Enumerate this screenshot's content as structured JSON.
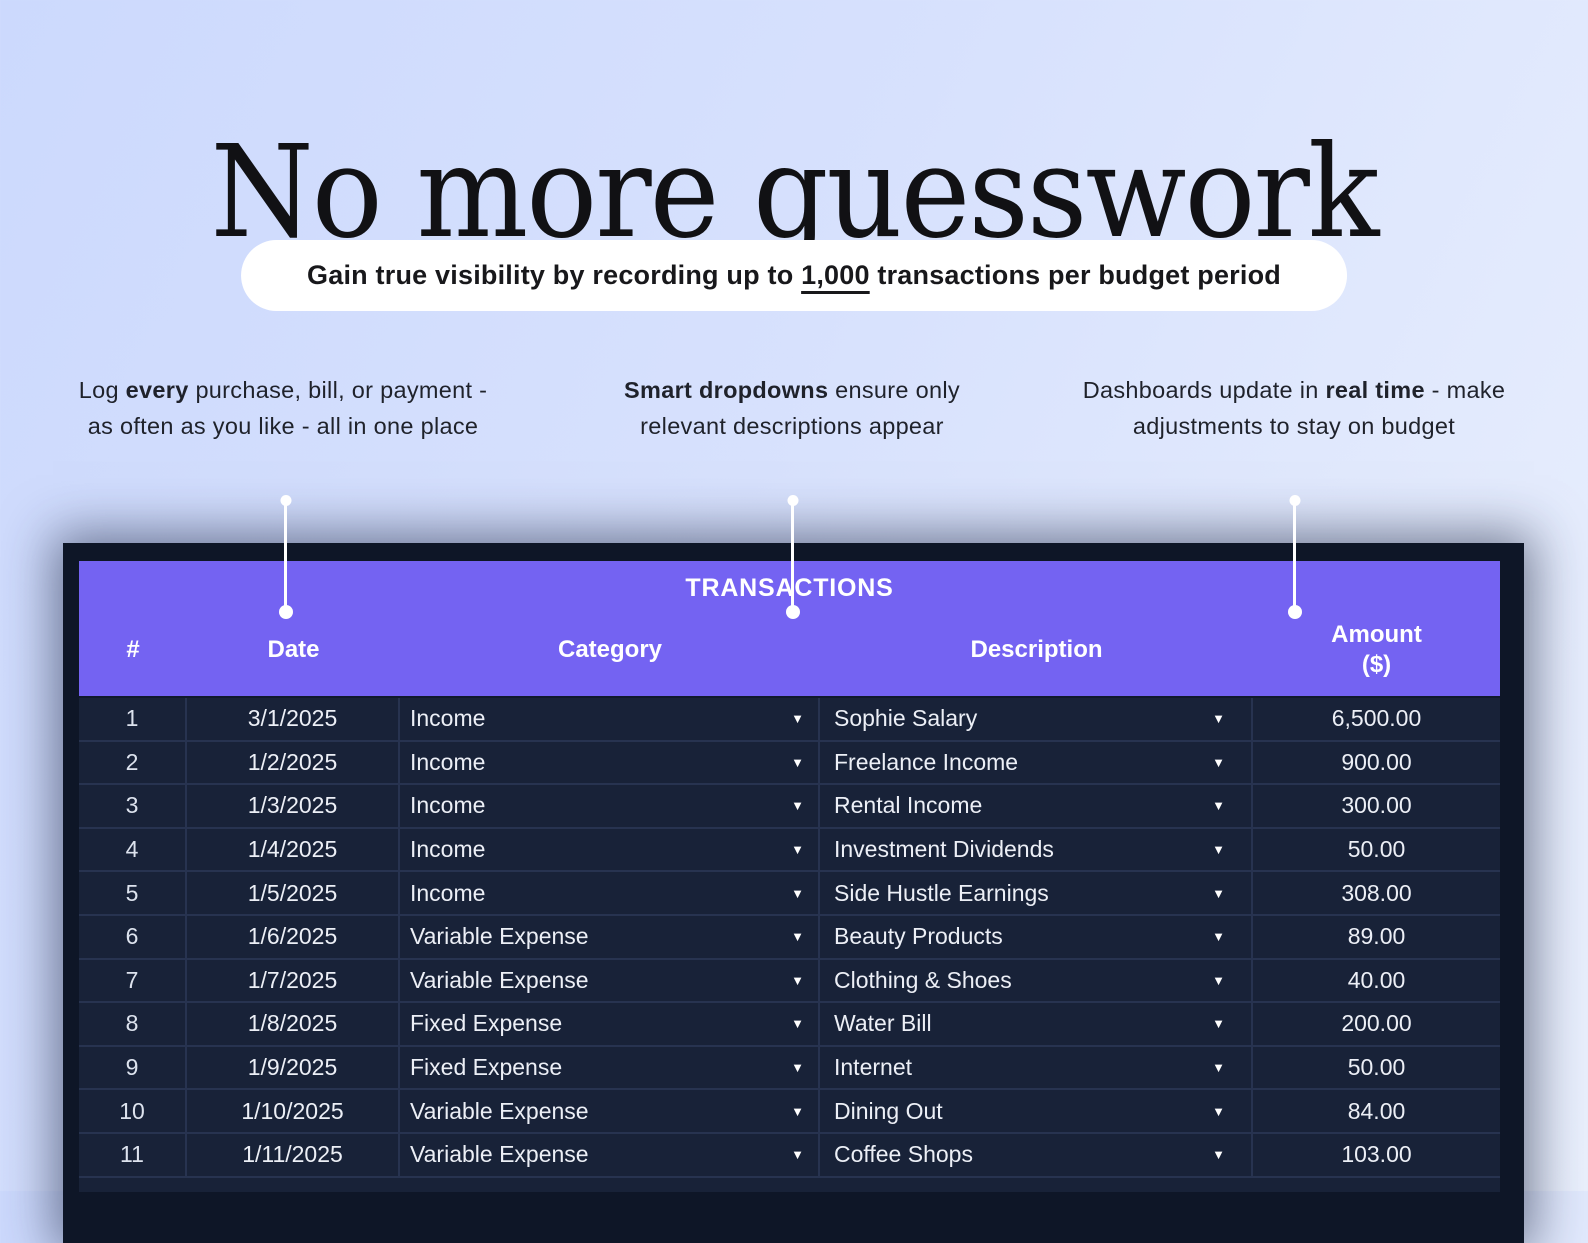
{
  "page": {
    "title": "No more guesswork"
  },
  "banner": {
    "segments": [
      {
        "text": "Gain true visibility by recording up to ",
        "bold": true
      },
      {
        "text": "1,000",
        "bold": true,
        "underline": true
      },
      {
        "text": " transactions per budget period",
        "bold": true
      }
    ]
  },
  "annotations": [
    {
      "segments": [
        {
          "text": "Log ",
          "bold": false
        },
        {
          "text": "every",
          "bold": true
        },
        {
          "text": " purchase, bill, or payment - as often as you like - all in one place",
          "bold": false
        }
      ]
    },
    {
      "segments": [
        {
          "text": "Smart dropdowns",
          "bold": true
        },
        {
          "text": " ensure only relevant descriptions appear",
          "bold": false
        }
      ]
    },
    {
      "segments": [
        {
          "text": "Dashboards update in ",
          "bold": false
        },
        {
          "text": "real time",
          "bold": true
        },
        {
          "text": " - make adjustments to stay on budget",
          "bold": false
        }
      ]
    }
  ],
  "table": {
    "title": "TRANSACTIONS",
    "columns": [
      {
        "label": "#"
      },
      {
        "label": "Date"
      },
      {
        "label": "Category"
      },
      {
        "label": "Description"
      },
      {
        "label": "Amount",
        "sub": "($)"
      }
    ],
    "rows": [
      {
        "num": "1",
        "date": "3/1/2025",
        "category": "Income",
        "description": "Sophie Salary",
        "amount": "6,500.00"
      },
      {
        "num": "2",
        "date": "1/2/2025",
        "category": "Income",
        "description": "Freelance Income",
        "amount": "900.00"
      },
      {
        "num": "3",
        "date": "1/3/2025",
        "category": "Income",
        "description": "Rental Income",
        "amount": "300.00"
      },
      {
        "num": "4",
        "date": "1/4/2025",
        "category": "Income",
        "description": "Investment Dividends",
        "amount": "50.00"
      },
      {
        "num": "5",
        "date": "1/5/2025",
        "category": "Income",
        "description": "Side Hustle Earnings",
        "amount": "308.00"
      },
      {
        "num": "6",
        "date": "1/6/2025",
        "category": "Variable Expense",
        "description": "Beauty Products",
        "amount": "89.00"
      },
      {
        "num": "7",
        "date": "1/7/2025",
        "category": "Variable Expense",
        "description": "Clothing & Shoes",
        "amount": "40.00"
      },
      {
        "num": "8",
        "date": "1/8/2025",
        "category": "Fixed Expense",
        "description": "Water Bill",
        "amount": "200.00"
      },
      {
        "num": "9",
        "date": "1/9/2025",
        "category": "Fixed Expense",
        "description": "Internet",
        "amount": "50.00"
      },
      {
        "num": "10",
        "date": "1/10/2025",
        "category": "Variable Expense",
        "description": "Dining Out",
        "amount": "84.00"
      },
      {
        "num": "11",
        "date": "1/11/2025",
        "category": "Variable Expense",
        "description": "Coffee Shops",
        "amount": "103.00"
      }
    ]
  },
  "colors": {
    "accent_purple": "#7463F2",
    "table_row_bg": "#182238",
    "table_frame": "#0E1627",
    "grid_line": "#273350",
    "page_bg_start": "#CCD9FD",
    "page_bg_end": "#EAF0FD"
  }
}
